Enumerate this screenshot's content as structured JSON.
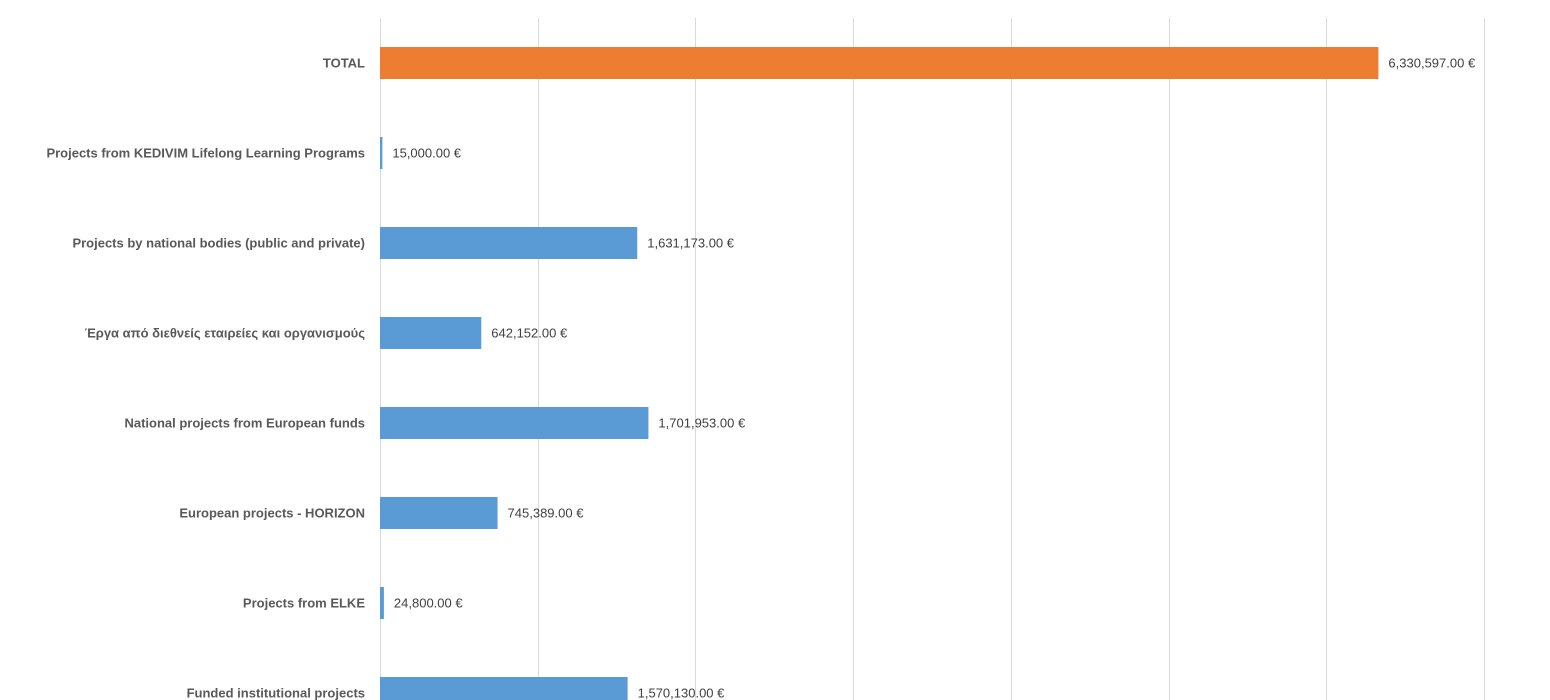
{
  "chart_data": {
    "type": "bar",
    "orientation": "horizontal",
    "categories": [
      "TOTAL",
      "Projects from KEDIVIM Lifelong Learning Programs",
      "Projects by national bodies (public and private)",
      "Έργα από διεθνείς εταιρείες και οργανισμούς",
      "National projects from European funds",
      "European projects - HORIZON",
      "Projects from ELKE",
      "Funded institutional projects"
    ],
    "values": [
      6330597,
      15000,
      1631173,
      642152,
      1701953,
      745389,
      24800,
      1570130
    ],
    "value_labels": [
      "6,330,597.00 €",
      "15,000.00 €",
      "1,631,173.00 €",
      "642,152.00 €",
      "1,701,953.00 €",
      "745,389.00 €",
      "24,800.00 €",
      "1,570,130.00 €"
    ],
    "colors": [
      "#ED7D31",
      "#5B9BD5",
      "#5B9BD5",
      "#5B9BD5",
      "#5B9BD5",
      "#5B9BD5",
      "#5B9BD5",
      "#5B9BD5"
    ],
    "xlim": [
      0,
      7000000
    ],
    "grid": true,
    "gridline_step": 1000000
  }
}
